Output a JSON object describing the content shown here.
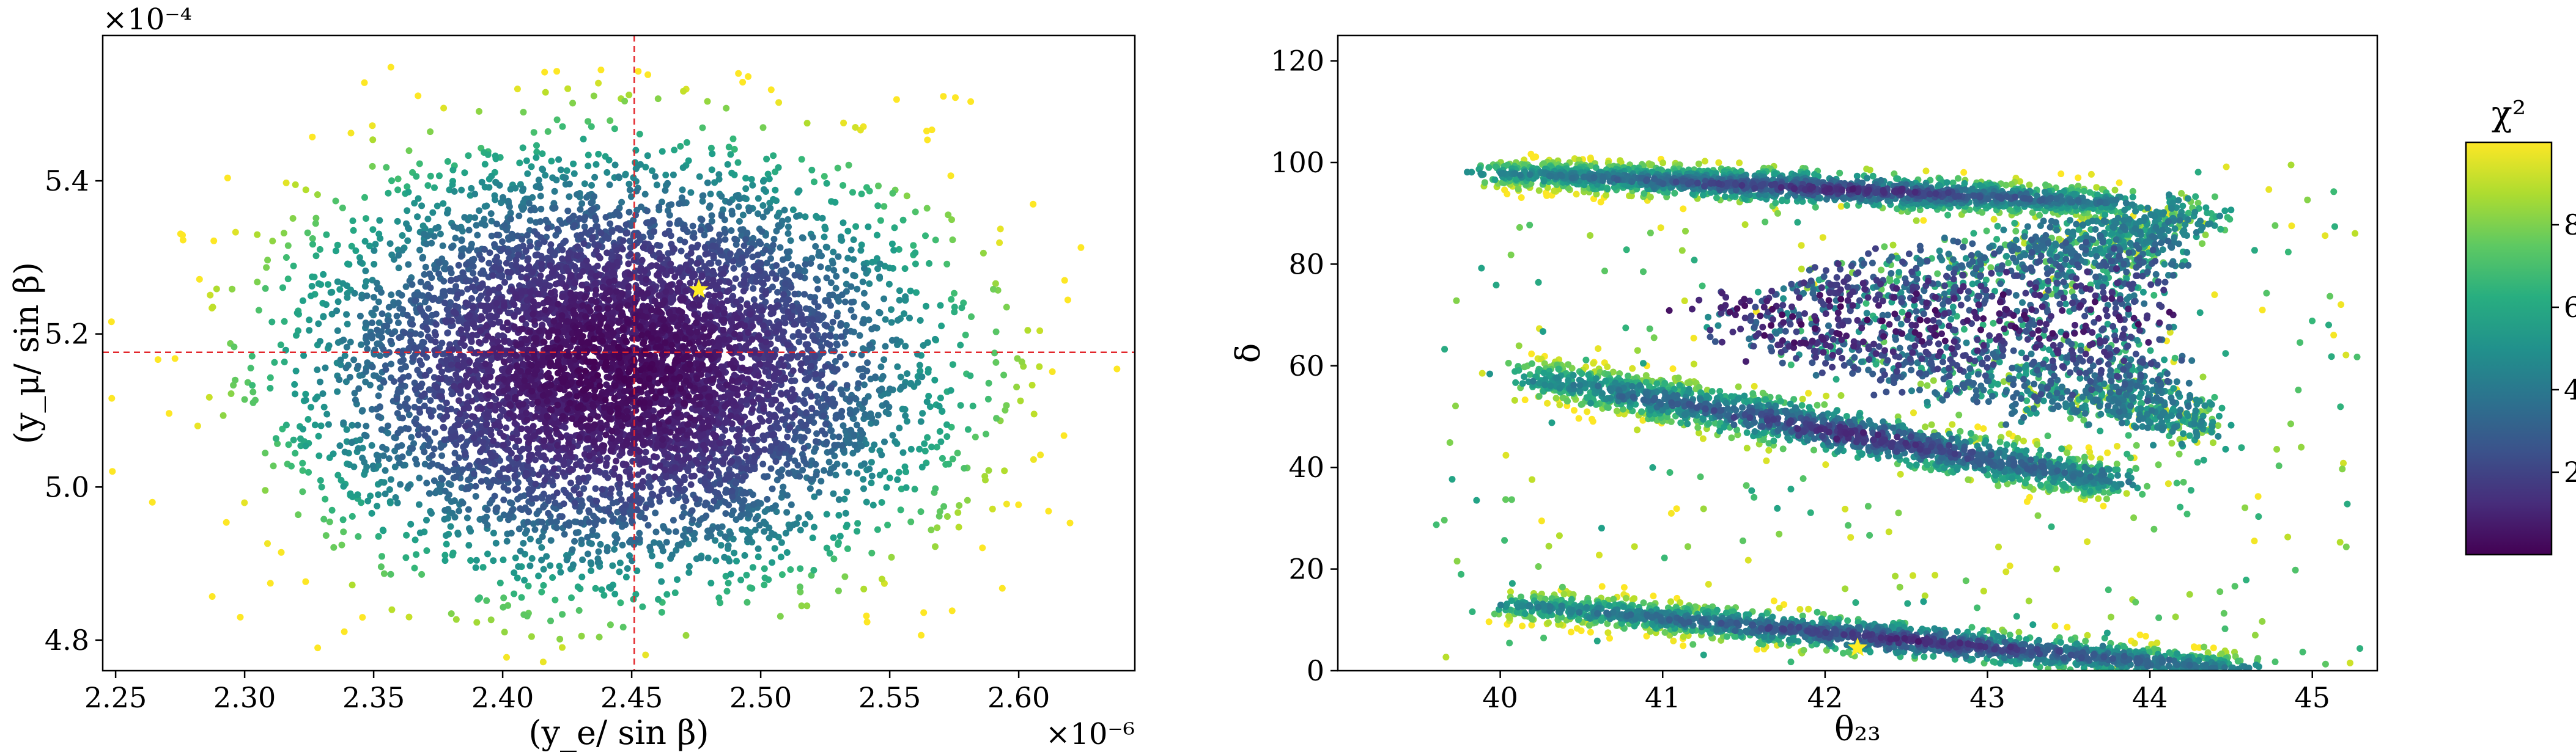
{
  "chart_data": [
    {
      "type": "scatter",
      "xlabel": "(y_e/ sin β)",
      "ylabel": "(y_μ/ sin β)",
      "x_multiplier": "×10⁻⁶",
      "y_multiplier": "×10⁻⁴",
      "xlim": [
        2.245,
        2.645
      ],
      "ylim": [
        4.76,
        5.59
      ],
      "xticks": [
        2.25,
        2.3,
        2.35,
        2.4,
        2.45,
        2.5,
        2.55,
        2.6
      ],
      "xtick_labels": [
        "2.25",
        "2.30",
        "2.35",
        "2.40",
        "2.45",
        "2.50",
        "2.55",
        "2.60"
      ],
      "yticks": [
        4.8,
        5.0,
        5.2,
        5.4
      ],
      "ytick_labels": [
        "4.8",
        "5.0",
        "5.2",
        "5.4"
      ],
      "grid": false,
      "cloud": {
        "center": [
          2.445,
          5.155
        ],
        "sigma": [
          0.055,
          0.125
        ],
        "chi2_range": [
          0,
          10
        ]
      },
      "reference_lines": {
        "vertical_x": 2.451,
        "horizontal_y": 5.176,
        "color": "#e3262b",
        "style": "dashed"
      },
      "best_fit_marker": {
        "x": 2.476,
        "y": 5.258,
        "symbol": "star",
        "color": "#ffee22"
      },
      "color_encoding": "chi2"
    },
    {
      "type": "scatter",
      "xlabel": "θ₂₃",
      "ylabel": "δ",
      "xlim": [
        39.0,
        45.4
      ],
      "ylim": [
        0,
        125
      ],
      "xticks": [
        40,
        41,
        42,
        43,
        44,
        45
      ],
      "xtick_labels": [
        "40",
        "41",
        "42",
        "43",
        "44",
        "45"
      ],
      "yticks": [
        0,
        20,
        40,
        60,
        80,
        100,
        120
      ],
      "ytick_labels": [
        "0",
        "20",
        "40",
        "60",
        "80",
        "100",
        "120"
      ],
      "grid": false,
      "bands": [
        {
          "name": "band-top",
          "x": [
            40.0,
            43.8
          ],
          "y_start": 98,
          "y_end": 92,
          "width": 3
        },
        {
          "name": "band-mid",
          "x": [
            40.2,
            43.8
          ],
          "y_start": 58,
          "y_end": 37,
          "width": 4
        },
        {
          "name": "band-bottom",
          "x": [
            40.1,
            44.6
          ],
          "y_start": 13,
          "y_end": 0,
          "width": 3
        }
      ],
      "arc": {
        "apex": [
          41.3,
          70
        ],
        "tip_x": 44.3,
        "upper_tip_y": 90,
        "lower_tip_y": 48
      },
      "best_fit_marker": {
        "x": 42.2,
        "y": 4.5,
        "symbol": "star",
        "color": "#ffee22"
      },
      "color_encoding": "chi2"
    }
  ],
  "colorbar": {
    "title": "χ²",
    "colormap": "viridis",
    "range": [
      0,
      10
    ],
    "ticks": [
      2,
      4,
      6,
      8
    ],
    "tick_labels": [
      "2",
      "4",
      "6",
      "8"
    ]
  }
}
